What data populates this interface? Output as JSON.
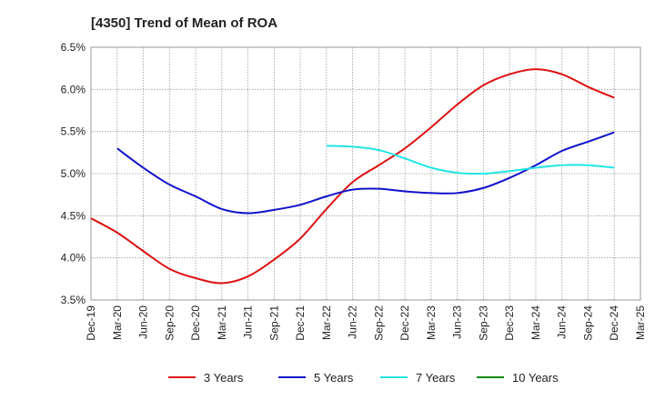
{
  "chart_data": {
    "type": "line",
    "title": "[4350]  Trend of Mean of ROA",
    "xlabel": "",
    "ylabel": "",
    "x": [
      "Dec-19",
      "Mar-20",
      "Jun-20",
      "Sep-20",
      "Dec-20",
      "Mar-21",
      "Jun-21",
      "Sep-21",
      "Dec-21",
      "Mar-22",
      "Jun-22",
      "Sep-22",
      "Dec-22",
      "Mar-23",
      "Jun-23",
      "Sep-23",
      "Dec-23",
      "Mar-24",
      "Jun-24",
      "Sep-24",
      "Dec-24",
      "Mar-25"
    ],
    "ylim": [
      3.5,
      6.5
    ],
    "yticks": [
      3.5,
      4.0,
      4.5,
      5.0,
      5.5,
      6.0,
      6.5
    ],
    "ytick_labels": [
      "3.5%",
      "4.0%",
      "4.5%",
      "5.0%",
      "5.5%",
      "6.0%",
      "6.5%"
    ],
    "grid": true,
    "legend_position": "bottom",
    "series": [
      {
        "name": "3 Years",
        "color": "#dd1111",
        "values": [
          4.47,
          4.3,
          4.08,
          3.87,
          3.76,
          3.7,
          3.78,
          3.98,
          4.23,
          4.58,
          4.9,
          5.1,
          5.3,
          5.55,
          5.82,
          6.05,
          6.18,
          6.24,
          6.18,
          6.03,
          5.9,
          null
        ]
      },
      {
        "name": "5 Years",
        "color": "#1111cc",
        "values": [
          null,
          5.3,
          5.07,
          4.87,
          4.73,
          4.58,
          4.53,
          4.57,
          4.63,
          4.73,
          4.81,
          4.82,
          4.79,
          4.77,
          4.77,
          4.83,
          4.95,
          5.1,
          5.27,
          5.38,
          5.49,
          null
        ]
      },
      {
        "name": "7 Years",
        "color": "#22e5e5",
        "values": [
          null,
          null,
          null,
          null,
          null,
          null,
          null,
          null,
          null,
          5.33,
          5.32,
          5.28,
          5.18,
          5.07,
          5.01,
          5.0,
          5.03,
          5.07,
          5.1,
          5.1,
          5.07,
          null
        ]
      },
      {
        "name": "10 Years",
        "color": "#118811",
        "values": [
          null,
          null,
          null,
          null,
          null,
          null,
          null,
          null,
          null,
          null,
          null,
          null,
          null,
          null,
          null,
          null,
          null,
          null,
          null,
          null,
          null,
          null
        ]
      }
    ]
  }
}
